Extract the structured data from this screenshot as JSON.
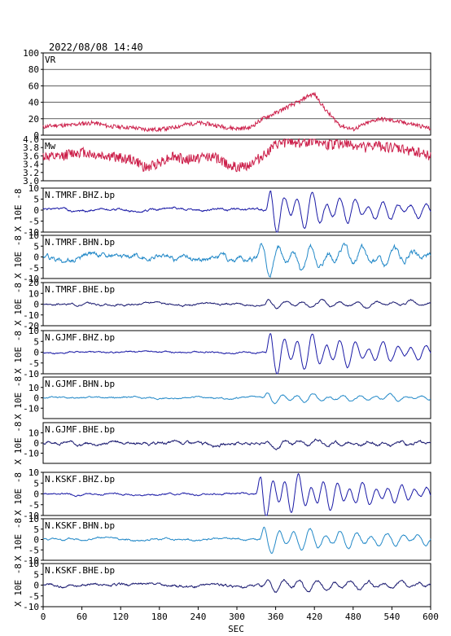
{
  "header": "2022/08/08 14:40",
  "chart_data": [
    {
      "type": "line",
      "label": "VR",
      "ylim": [
        0,
        100
      ],
      "yticks": [
        0,
        20,
        40,
        60,
        80,
        100
      ],
      "grid": true,
      "color": "#cc1f4a",
      "t": [
        0,
        20,
        40,
        60,
        80,
        100,
        120,
        140,
        160,
        180,
        200,
        220,
        240,
        260,
        280,
        300,
        320,
        340,
        360,
        380,
        400,
        410,
        420,
        440,
        460,
        480,
        500,
        520,
        540,
        560,
        580,
        600
      ],
      "values": [
        10,
        12,
        12,
        14,
        15,
        11,
        10,
        9,
        7,
        7,
        9,
        13,
        15,
        13,
        10,
        8,
        9,
        20,
        27,
        35,
        42,
        48,
        50,
        28,
        12,
        7,
        14,
        20,
        18,
        15,
        12,
        8
      ]
    },
    {
      "type": "line",
      "label": "Mw",
      "ylim": [
        3.0,
        4.0
      ],
      "yticks": [
        3.0,
        3.2,
        3.4,
        3.6,
        3.8,
        4.0
      ],
      "ytick_labels": [
        "3.0",
        "3.2",
        "3.4",
        "3.6",
        "3.8",
        "4.0"
      ],
      "color": "#cc1f4a",
      "t": [
        0,
        20,
        40,
        60,
        80,
        100,
        120,
        140,
        160,
        180,
        200,
        220,
        240,
        260,
        280,
        300,
        320,
        340,
        360,
        380,
        400,
        420,
        440,
        460,
        480,
        500,
        520,
        540,
        560,
        580,
        600
      ],
      "values": [
        3.6,
        3.55,
        3.65,
        3.7,
        3.62,
        3.6,
        3.55,
        3.5,
        3.3,
        3.45,
        3.6,
        3.5,
        3.55,
        3.6,
        3.45,
        3.3,
        3.4,
        3.6,
        3.85,
        3.95,
        3.9,
        4.0,
        3.85,
        3.9,
        3.85,
        3.8,
        3.85,
        3.8,
        3.75,
        3.7,
        3.6
      ]
    },
    {
      "type": "line",
      "label": "N.TMRF.BHZ.bp",
      "ylim": [
        -10,
        10
      ],
      "yticks": [
        -10,
        -5,
        0,
        5,
        10
      ],
      "ylabel": "X 10E -8",
      "color": "#1a1aa6",
      "signal": {
        "amp": 8,
        "onset": 345,
        "period": 22,
        "decay": 180,
        "noise": 0.6,
        "seed": 1
      }
    },
    {
      "type": "line",
      "label": "N.TMRF.BHN.bp",
      "ylim": [
        -10,
        10
      ],
      "yticks": [
        -10,
        -5,
        0,
        5,
        10
      ],
      "ylabel": "X 10E -8",
      "color": "#2389c8",
      "signal": {
        "amp": 5,
        "onset": 330,
        "period": 26,
        "decay": 300,
        "noise": 1.4,
        "seed": 2
      }
    },
    {
      "type": "line",
      "label": "N.TMRF.BHE.bp",
      "ylim": [
        -20,
        20
      ],
      "yticks": [
        -20,
        -10,
        0,
        10,
        20
      ],
      "ylabel": "X 10E -8",
      "color": "#1a1a70",
      "signal": {
        "amp": 3,
        "onset": 340,
        "period": 28,
        "decay": 300,
        "noise": 1.0,
        "seed": 3
      }
    },
    {
      "type": "line",
      "label": "N.GJMF.BHZ.bp",
      "ylim": [
        -10,
        10
      ],
      "yticks": [
        -10,
        -5,
        0,
        5,
        10
      ],
      "ylabel": "X 10E -8",
      "color": "#1a1aa6",
      "signal": {
        "amp": 8,
        "onset": 345,
        "period": 22,
        "decay": 200,
        "noise": 0.4,
        "seed": 4
      }
    },
    {
      "type": "line",
      "label": "N.GJMF.BHN.bp",
      "ylim": [
        -20,
        20
      ],
      "yticks": [
        -10,
        0,
        10
      ],
      "ylabel": "X 10E -8",
      "color": "#2389c8",
      "signal": {
        "amp": 4,
        "onset": 340,
        "period": 24,
        "decay": 260,
        "noise": 0.8,
        "seed": 5
      }
    },
    {
      "type": "line",
      "label": "N.GJMF.BHE.bp",
      "ylim": [
        -20,
        20
      ],
      "yticks": [
        -10,
        0,
        10
      ],
      "ylabel": "X 10E -8",
      "color": "#1a1a70",
      "signal": {
        "amp": 3,
        "onset": 340,
        "period": 26,
        "decay": 280,
        "noise": 1.6,
        "seed": 6
      }
    },
    {
      "type": "line",
      "label": "N.KSKF.BHZ.bp",
      "ylim": [
        -10,
        10
      ],
      "yticks": [
        -10,
        -5,
        0,
        5,
        10
      ],
      "ylabel": "X 10E -8",
      "color": "#1a1aa6",
      "signal": {
        "amp": 8,
        "onset": 330,
        "period": 20,
        "decay": 220,
        "noise": 0.4,
        "seed": 7
      }
    },
    {
      "type": "line",
      "label": "N.KSKF.BHN.bp",
      "ylim": [
        -10,
        10
      ],
      "yticks": [
        -10,
        -5,
        0,
        5,
        10
      ],
      "ylabel": "X 10E -8",
      "color": "#2389c8",
      "signal": {
        "amp": 5,
        "onset": 335,
        "period": 24,
        "decay": 250,
        "noise": 0.5,
        "seed": 8
      }
    },
    {
      "type": "line",
      "label": "N.KSKF.BHE.bp",
      "ylim": [
        -10,
        10
      ],
      "yticks": [
        -10,
        -5,
        0,
        5,
        10
      ],
      "ylabel": "X 10E -8",
      "color": "#1a1a70",
      "signal": {
        "amp": 2.5,
        "onset": 340,
        "period": 26,
        "decay": 280,
        "noise": 0.7,
        "seed": 9
      }
    }
  ],
  "x_axis": {
    "label": "SEC",
    "xlim": [
      0,
      600
    ],
    "ticks": [
      0,
      60,
      120,
      180,
      240,
      300,
      360,
      420,
      480,
      540,
      600
    ]
  }
}
